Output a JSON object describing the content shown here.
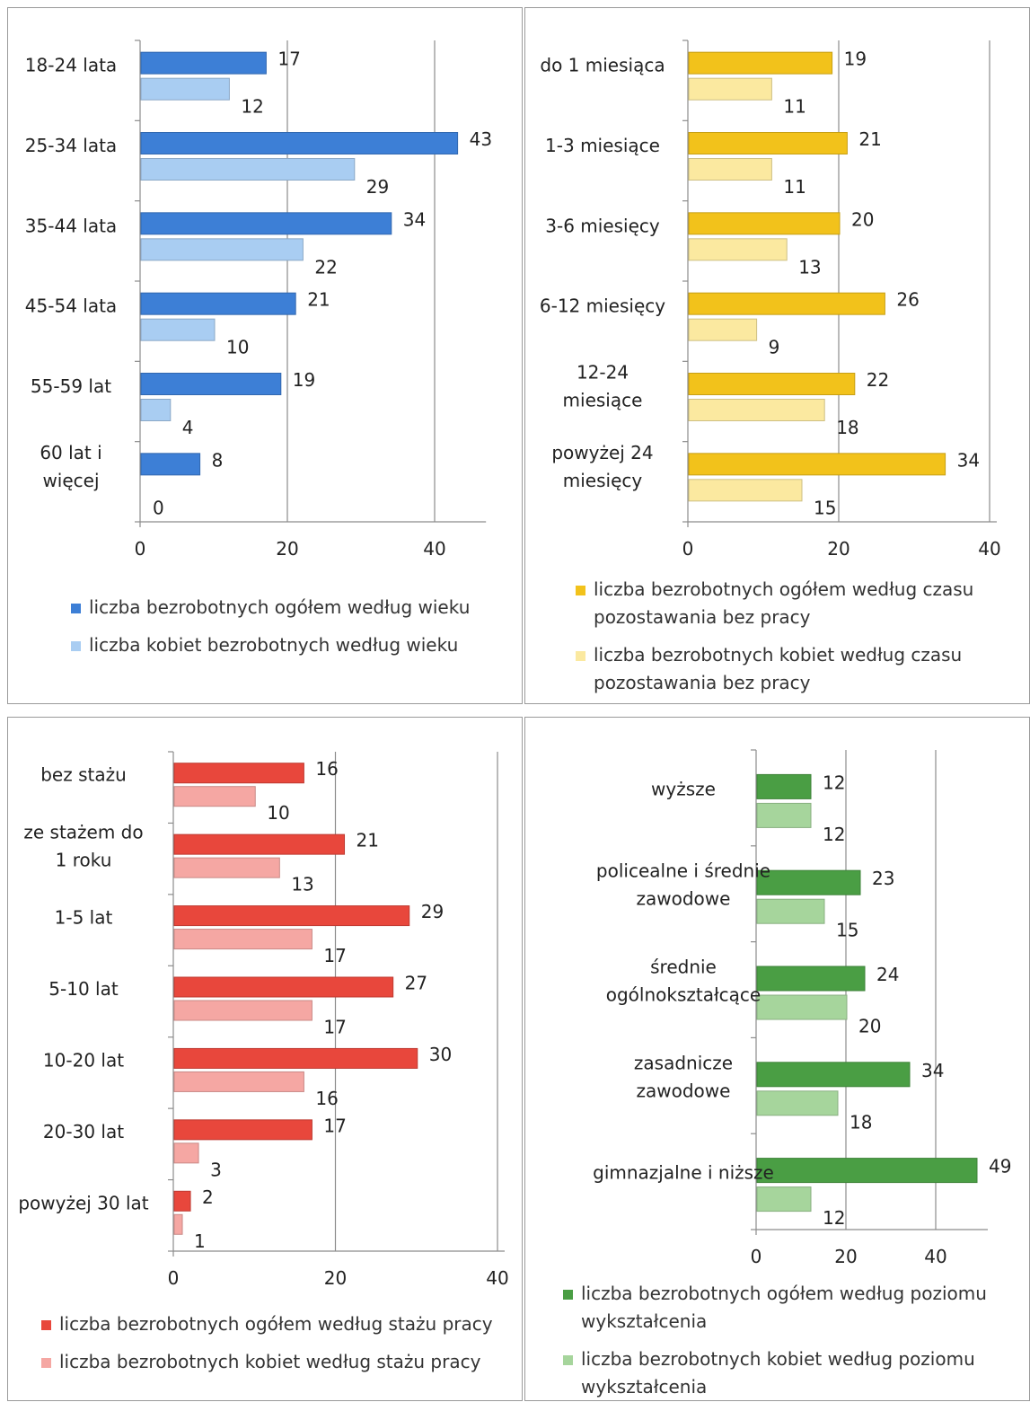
{
  "chart_data": [
    {
      "type": "bar",
      "orientation": "horizontal",
      "categories": [
        [
          "18-24 lata"
        ],
        [
          "25-34 lata"
        ],
        [
          "35-44 lata"
        ],
        [
          "45-54 lata"
        ],
        [
          "55-59 lat"
        ],
        [
          "60 lat i",
          "więcej"
        ]
      ],
      "series": [
        {
          "name": "liczba bezrobotnych ogółem według wieku",
          "values": [
            17,
            43,
            34,
            21,
            19,
            8
          ],
          "color": "#3d7fd6"
        },
        {
          "name": "liczba kobiet bezrobotnych według wieku",
          "values": [
            12,
            29,
            22,
            10,
            4,
            0
          ],
          "color": "#a9cdf2"
        }
      ],
      "xticks": [
        0,
        20,
        40
      ],
      "xlim": [
        0,
        46
      ],
      "grid": true,
      "legend": "bottom"
    },
    {
      "type": "bar",
      "orientation": "horizontal",
      "categories": [
        [
          "do 1 miesiąca"
        ],
        [
          "1-3 miesiące"
        ],
        [
          "3-6 miesięcy"
        ],
        [
          "6-12 miesięcy"
        ],
        [
          "12-24",
          "miesiące"
        ],
        [
          "powyżej 24",
          "miesięcy"
        ]
      ],
      "series": [
        {
          "name": "liczba bezrobotnych ogółem według czasu pozostawania bez pracy",
          "values": [
            19,
            21,
            20,
            26,
            22,
            34
          ],
          "color": "#f2c21b"
        },
        {
          "name": "liczba bezrobotnych kobiet według czasu pozostawania bez pracy",
          "values": [
            11,
            11,
            13,
            9,
            18,
            15
          ],
          "color": "#fbe9a0"
        }
      ],
      "xticks": [
        0,
        20,
        40
      ],
      "xlim": [
        0,
        40
      ],
      "grid": true,
      "legend": "bottom"
    },
    {
      "type": "bar",
      "orientation": "horizontal",
      "categories": [
        [
          "bez stażu"
        ],
        [
          "ze stażem do",
          "1 roku"
        ],
        [
          "1-5 lat"
        ],
        [
          "5-10 lat"
        ],
        [
          "10-20 lat"
        ],
        [
          "20-30 lat"
        ],
        [
          "powyżej 30 lat"
        ]
      ],
      "series": [
        {
          "name": "liczba bezrobotnych ogółem według stażu pracy",
          "values": [
            16,
            21,
            29,
            27,
            30,
            17,
            2
          ],
          "color": "#e8473c"
        },
        {
          "name": "liczba bezrobotnych kobiet według stażu pracy",
          "values": [
            10,
            13,
            17,
            17,
            16,
            3,
            1
          ],
          "color": "#f5a7a3"
        }
      ],
      "xticks": [
        0,
        20,
        40
      ],
      "xlim": [
        0,
        40
      ],
      "grid": true,
      "legend": "bottom"
    },
    {
      "type": "bar",
      "orientation": "horizontal",
      "categories": [
        [
          "wyższe"
        ],
        [
          "policealne i średnie",
          "zawodowe"
        ],
        [
          "średnie",
          "ogólnokształcące"
        ],
        [
          "zasadnicze",
          "zawodowe"
        ],
        [
          "gimnazjalne i niższe"
        ]
      ],
      "series": [
        {
          "name": "liczba bezrobotnych ogółem według poziomu wykształcenia",
          "values": [
            12,
            23,
            24,
            34,
            49
          ],
          "color": "#4a9e44"
        },
        {
          "name": "liczba bezrobotnych kobiet według poziomu wykształcenia",
          "values": [
            12,
            15,
            20,
            18,
            12
          ],
          "color": "#a6d59c"
        }
      ],
      "xticks": [
        0,
        20,
        40
      ],
      "xlim": [
        0,
        50
      ],
      "grid": true,
      "legend": "bottom"
    }
  ],
  "legend_lines": [
    [
      [
        "liczba bezrobotnych ogółem według wieku"
      ],
      [
        "liczba kobiet bezrobotnych według wieku"
      ]
    ],
    [
      [
        "liczba bezrobotnych ogółem według czasu",
        "pozostawania bez pracy"
      ],
      [
        "liczba bezrobotnych kobiet według czasu",
        "pozostawania bez pracy"
      ]
    ],
    [
      [
        "liczba bezrobotnych ogółem według stażu pracy"
      ],
      [
        "liczba bezrobotnych kobiet według stażu pracy"
      ]
    ],
    [
      [
        "liczba bezrobotnych ogółem według poziomu",
        "wykształcenia"
      ],
      [
        "liczba bezrobotnych kobiet według poziomu",
        "wykształcenia"
      ]
    ]
  ]
}
